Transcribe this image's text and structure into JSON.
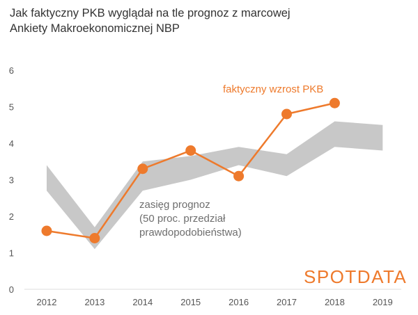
{
  "chart_data": {
    "type": "line",
    "title_lines": [
      "Jak faktyczny PKB wyglądał na tle prognoz z marcowej",
      "Ankiety Makroekonomicznej NBP"
    ],
    "categories": [
      "2012",
      "2013",
      "2014",
      "2015",
      "2016",
      "2017",
      "2018",
      "2019"
    ],
    "ylim": [
      0,
      6
    ],
    "yticks": [
      "0",
      "1",
      "2",
      "3",
      "4",
      "5",
      "6"
    ],
    "grid": false,
    "series": [
      {
        "name": "faktyczny wzrost PKB",
        "color": "#ee7a2c",
        "values": [
          1.6,
          1.4,
          3.3,
          3.8,
          3.1,
          4.8,
          5.1,
          null
        ]
      }
    ],
    "band": {
      "color": "#c8c8c8",
      "lower": [
        2.7,
        1.1,
        2.7,
        3.0,
        3.4,
        3.1,
        3.9,
        3.8
      ],
      "upper": [
        3.4,
        1.7,
        3.5,
        3.65,
        3.9,
        3.7,
        4.6,
        4.5
      ],
      "label_lines": [
        "zasięg prognoz",
        "(50 proc. przedział",
        "prawdopodobieństwa)"
      ]
    },
    "line_label": "faktyczny wzrost PKB"
  },
  "logo": {
    "text": "SPOTDATA",
    "color": "#ee7a2c"
  }
}
